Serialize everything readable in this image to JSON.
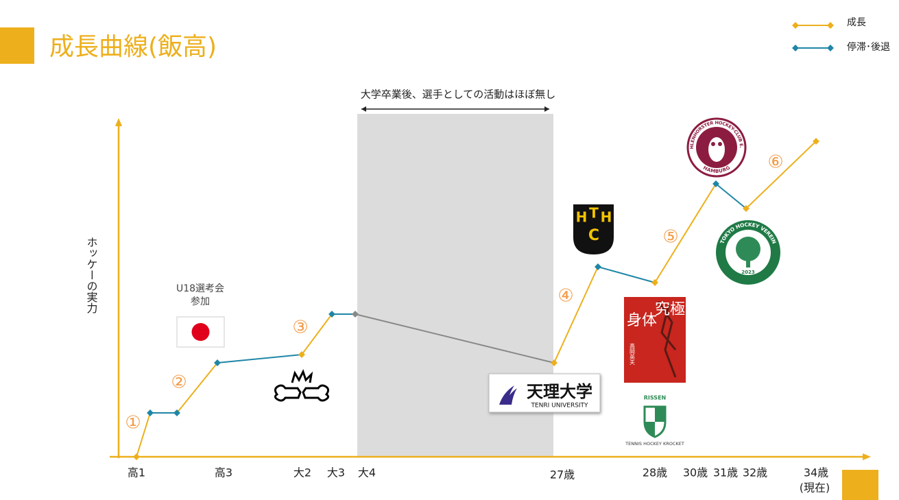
{
  "header": {
    "title": "成長曲線(飯高)"
  },
  "legend": {
    "growth": "成長",
    "stagnation": "停滞･後退"
  },
  "axis": {
    "y_label": "ホッケーの実力",
    "x_labels": [
      "高1",
      "高3",
      "大2",
      "大3",
      "大4",
      "27歳",
      "28歳",
      "30歳",
      "31歳",
      "32歳",
      "34歳",
      "(現在)"
    ]
  },
  "period_note": "大学卒業後、選手としての活動はほぼ無し",
  "annotation": {
    "line1": "U18選考会",
    "line2": "参加"
  },
  "steps": [
    "①",
    "②",
    "③",
    "④",
    "⑤",
    "⑥"
  ],
  "logos": {
    "hthc": [
      "H",
      "T",
      "H",
      "C"
    ],
    "tenri": {
      "name": "天理大学",
      "sub": "TENRI UNIVERSITY"
    },
    "book": {
      "title1": "究極の",
      "title2": "身体",
      "author": "高岡英夫"
    },
    "uhlenhorst": {
      "top": "UHLENHORSTER HOCKEY-CLUB E.V.",
      "bottom": "HAMBURG"
    },
    "tokyo": {
      "top": "TOKYO HOCKEY VEREIN",
      "year": "2023"
    },
    "rissen": {
      "top": "RISSEN",
      "bottom": "TENNIS HOCKEY KROCKET"
    }
  }
}
